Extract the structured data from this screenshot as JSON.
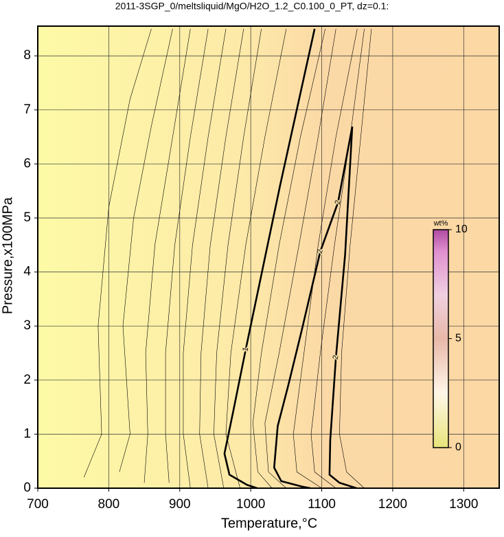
{
  "chart_data": {
    "type": "contour",
    "title": "2011-3SGP_0/meltsliquid/MgO/H2O_1.2_C0.100_0_PT, dz=0.1:",
    "xlabel": "Temperature,°C",
    "ylabel": "Pressure,x100MPa",
    "xlim": [
      700,
      1350
    ],
    "ylim": [
      0,
      8.55
    ],
    "xticks": [
      700,
      800,
      900,
      1000,
      1100,
      1200,
      1300
    ],
    "yticks": [
      0,
      1,
      2,
      3,
      4,
      5,
      6,
      7,
      8
    ],
    "grid": true,
    "colorbar": {
      "label": "wt%",
      "lim": [
        0,
        10
      ],
      "ticks": [
        0,
        5,
        10
      ]
    },
    "contours": [
      {
        "level": 0.2,
        "x": [
          860,
          830,
          800,
          785,
          790,
          765
        ],
        "y": [
          8.5,
          7.2,
          5.2,
          3,
          1,
          0.2
        ]
      },
      {
        "level": 0.3,
        "x": [
          890,
          860,
          835,
          820,
          830,
          815
        ],
        "y": [
          8.5,
          6.7,
          5,
          3,
          1,
          0.3
        ]
      },
      {
        "level": 0.4,
        "x": [
          915,
          890,
          865,
          852,
          855,
          850
        ],
        "y": [
          8.5,
          6.5,
          4.5,
          2.5,
          1,
          0.1
        ]
      },
      {
        "level": 0.5,
        "x": [
          940,
          915,
          893,
          880,
          880,
          885
        ],
        "y": [
          8.5,
          6.5,
          4.5,
          2.5,
          1,
          0.1
        ]
      },
      {
        "level": 0.6,
        "x": [
          965,
          940,
          918,
          905,
          905,
          915
        ],
        "y": [
          8.5,
          6.5,
          4.5,
          2.5,
          1,
          0
        ]
      },
      {
        "level": 0.7,
        "x": [
          990,
          965,
          943,
          930,
          928,
          940
        ],
        "y": [
          8.5,
          6.5,
          4.5,
          2.5,
          1,
          0
        ]
      },
      {
        "level": 0.8,
        "x": [
          1015,
          990,
          968,
          952,
          948,
          962
        ],
        "y": [
          8.5,
          6.5,
          4.5,
          2.5,
          1,
          0
        ]
      },
      {
        "level": 0.9,
        "x": [
          1050,
          1020,
          993,
          972,
          965,
          985
        ],
        "y": [
          8.5,
          6.5,
          4.5,
          2.5,
          1,
          0
        ]
      },
      {
        "level": 1,
        "x": [
          1090,
          1041,
          993,
          975,
          963,
          970,
          995,
          1009
        ],
        "y": [
          8.5,
          5.58,
          2.57,
          1.4,
          0.64,
          0.25,
          0.06,
          0
        ]
      },
      {
        "level": 1.2,
        "x": [
          1105,
          1070,
          1040,
          1015,
          1003,
          1010,
          1030
        ],
        "y": [
          8.5,
          6.5,
          4.5,
          2.5,
          1.2,
          0.3,
          0
        ]
      },
      {
        "level": 1.4,
        "x": [
          1120,
          1095,
          1068,
          1040,
          1020,
          1025,
          1050
        ],
        "y": [
          8.5,
          6.5,
          4.5,
          2.5,
          1.2,
          0.3,
          0
        ]
      },
      {
        "level": 2,
        "x": [
          1143,
          1123,
          1098,
          1072,
          1053,
          1038,
          1033,
          1043,
          1072,
          1084
        ],
        "y": [
          6.69,
          5.29,
          4.38,
          2.93,
          1.91,
          1.15,
          0.38,
          0.13,
          0.03,
          0
        ]
      },
      {
        "level": 1.7,
        "x": [
          1150,
          1120,
          1095,
          1075,
          1060,
          1065,
          1100
        ],
        "y": [
          8.5,
          6.5,
          4.5,
          2.5,
          1,
          0.3,
          0
        ]
      },
      {
        "level": 1.9,
        "x": [
          1160,
          1140,
          1118,
          1098,
          1085,
          1090,
          1120
        ],
        "y": [
          8.5,
          6.5,
          4.5,
          2.5,
          1,
          0.3,
          0
        ]
      },
      {
        "level": 2,
        "x": [
          1143,
          1133,
          1120,
          1112,
          1111,
          1125,
          1149
        ],
        "y": [
          6.69,
          4.33,
          2.42,
          0.89,
          0.25,
          0.1,
          0
        ]
      },
      {
        "level": 2.1,
        "x": [
          1170,
          1155,
          1140,
          1128,
          1125,
          1135,
          1160
        ],
        "y": [
          8.5,
          6.5,
          4.5,
          2.5,
          1,
          0.3,
          0
        ]
      }
    ]
  }
}
